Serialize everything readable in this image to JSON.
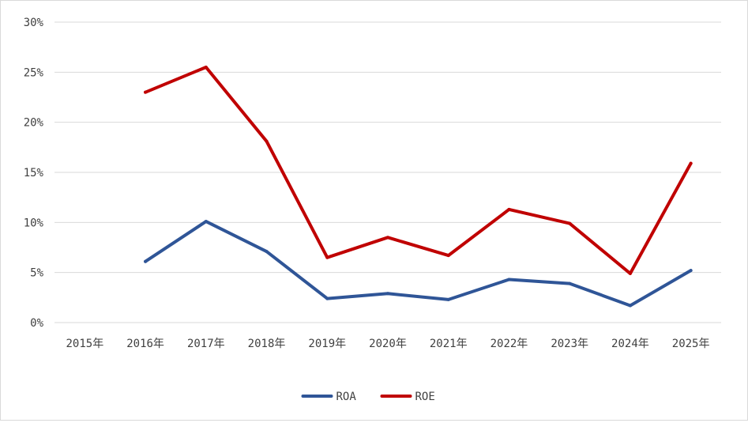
{
  "chart_data": {
    "type": "line",
    "categories": [
      "2015年",
      "2016年",
      "2017年",
      "2018年",
      "2019年",
      "2020年",
      "2021年",
      "2022年",
      "2023年",
      "2024年",
      "2025年"
    ],
    "y_ticks": [
      "0%",
      "5%",
      "10%",
      "15%",
      "20%",
      "25%",
      "30%"
    ],
    "ylim": [
      0,
      30
    ],
    "grid": true,
    "legend_position": "bottom",
    "series": [
      {
        "name": "ROA",
        "color": "#2f5597",
        "values": [
          null,
          6.1,
          10.1,
          7.1,
          2.4,
          2.9,
          2.3,
          4.3,
          3.9,
          1.7,
          5.2
        ]
      },
      {
        "name": "ROE",
        "color": "#c00000",
        "values": [
          null,
          23.0,
          25.5,
          18.1,
          6.5,
          8.5,
          6.7,
          11.3,
          9.9,
          4.9,
          15.9
        ]
      }
    ]
  }
}
